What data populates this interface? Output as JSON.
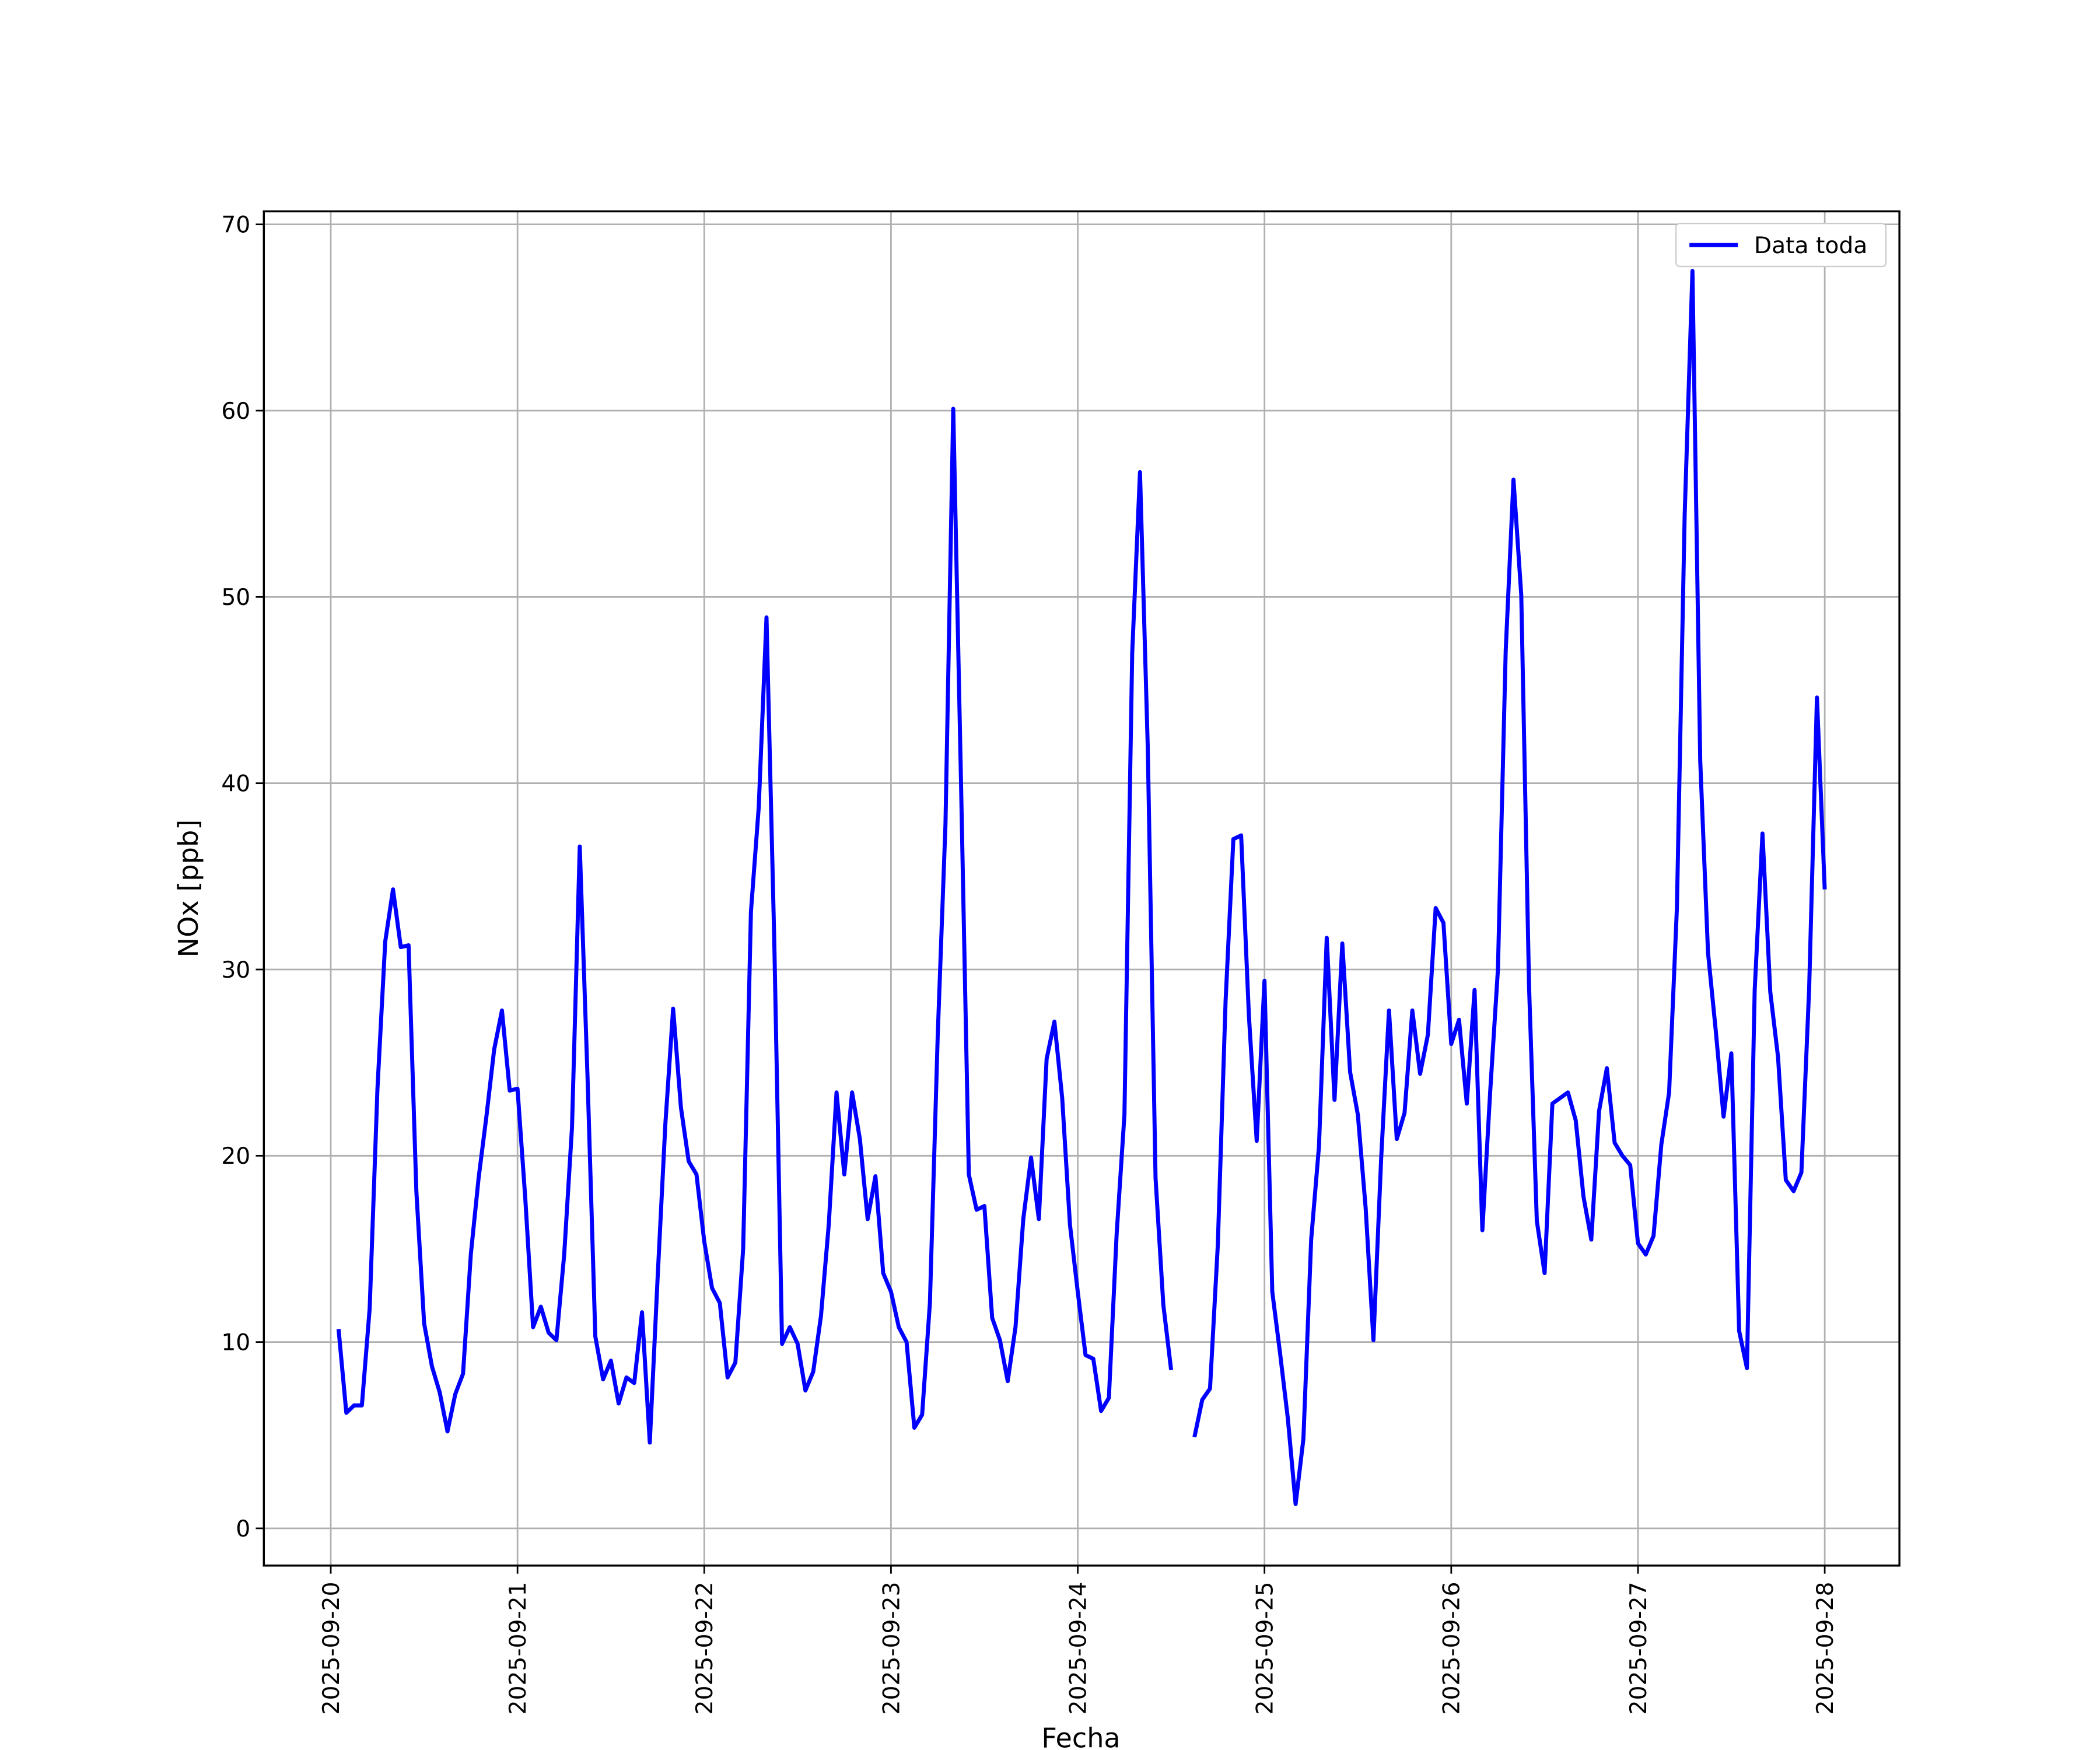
{
  "chart_data": {
    "type": "line",
    "xlabel": "Fecha",
    "ylabel": "NOx [ppb]",
    "x": [
      1,
      2,
      3,
      4,
      5,
      6,
      7,
      8,
      9,
      10,
      11,
      12,
      13,
      14,
      15,
      16,
      17,
      18,
      19,
      20,
      21,
      22,
      23,
      24,
      25,
      26,
      27,
      28,
      29,
      30,
      31,
      32,
      33,
      34,
      35,
      36,
      37,
      38,
      39,
      40,
      41,
      42,
      43,
      44,
      45,
      46,
      47,
      48,
      49,
      50,
      51,
      52,
      53,
      54,
      55,
      56,
      57,
      58,
      59,
      60,
      61,
      62,
      63,
      64,
      65,
      66,
      67,
      68,
      69,
      70,
      71,
      72,
      73,
      74,
      75,
      76,
      77,
      78,
      79,
      80,
      81,
      82,
      83,
      84,
      85,
      86,
      87,
      88,
      89,
      90,
      91,
      92,
      93,
      94,
      95,
      96,
      97,
      98,
      99,
      100,
      101,
      102,
      103,
      104,
      105,
      106,
      107,
      108,
      109,
      110,
      111,
      112,
      113,
      114,
      115,
      116,
      117,
      118,
      119,
      120,
      121,
      122,
      123,
      124,
      125,
      126,
      127,
      128,
      129,
      130,
      131,
      132,
      133,
      134,
      135,
      136,
      137,
      138,
      139,
      140,
      141,
      142,
      143,
      144,
      145,
      146,
      147,
      148,
      149,
      150,
      151,
      152,
      153,
      154,
      155,
      156,
      157,
      158,
      159,
      160,
      161,
      162,
      163,
      164,
      165,
      166,
      167,
      168,
      169,
      170,
      171,
      172,
      173,
      174,
      175,
      176,
      177,
      178,
      179,
      180,
      181,
      182,
      183,
      184,
      185,
      186,
      187,
      188,
      189,
      190,
      191,
      192
    ],
    "series": [
      {
        "name": "Data toda",
        "color": "#0000ff",
        "values": [
          10.7,
          6.2,
          6.6,
          6.6,
          11.8,
          23.6,
          31.5,
          34.3,
          31.2,
          31.3,
          18.1,
          11.0,
          8.7,
          7.3,
          5.2,
          7.2,
          8.3,
          14.7,
          18.8,
          22.1,
          25.7,
          27.8,
          23.5,
          23.6,
          17.7,
          10.8,
          11.9,
          10.5,
          10.1,
          14.7,
          21.5,
          36.6,
          24.2,
          10.3,
          8.0,
          9.0,
          6.7,
          8.1,
          7.8,
          11.6,
          4.6,
          13.4,
          21.7,
          27.9,
          22.6,
          19.7,
          19.0,
          15.4,
          12.9,
          12.1,
          8.1,
          8.9,
          15.0,
          33.1,
          38.7,
          48.9,
          31.5,
          9.9,
          10.8,
          9.9,
          7.4,
          8.4,
          11.4,
          16.3,
          23.4,
          19.0,
          23.4,
          20.9,
          16.6,
          18.9,
          13.7,
          12.7,
          10.8,
          10.0,
          5.4,
          6.1,
          12.1,
          26.4,
          37.8,
          60.1,
          40.0,
          19.0,
          17.1,
          17.3,
          11.3,
          10.1,
          7.9,
          10.8,
          16.6,
          19.9,
          16.6,
          25.2,
          27.2,
          23.1,
          16.3,
          12.7,
          9.3,
          9.1,
          6.3,
          7.0,
          15.8,
          22.2,
          47.0,
          56.7,
          41.9,
          18.8,
          12.0,
          8.5,
          null,
          null,
          4.9,
          6.9,
          7.5,
          15.2,
          28.3,
          37.0,
          37.2,
          27.5,
          20.8,
          29.4,
          12.7,
          9.4,
          5.9,
          1.3,
          4.8,
          15.5,
          20.5,
          31.7,
          23.0,
          31.4,
          24.5,
          22.2,
          17.2,
          10.1,
          19.9,
          27.8,
          20.9,
          22.3,
          27.8,
          24.4,
          26.5,
          33.3,
          32.5,
          26.0,
          27.3,
          22.8,
          28.9,
          16.0,
          23.4,
          30.0,
          47.1,
          56.3,
          50.1,
          29.1,
          16.5,
          13.7,
          22.8,
          23.1,
          23.4,
          21.9,
          17.8,
          15.5,
          22.4,
          24.7,
          20.7,
          20.0,
          19.5,
          15.3,
          14.7,
          15.7,
          20.6,
          23.4,
          33.3,
          54.4,
          67.5,
          41.2,
          30.9,
          26.7,
          22.1,
          25.5,
          10.6,
          8.6,
          28.9,
          37.3,
          28.8,
          25.3,
          18.7,
          18.1,
          19.1,
          29.0,
          44.6,
          34.3
        ]
      }
    ],
    "xlim": [
      -8.6,
      201.6
    ],
    "xticks": [
      {
        "value": 0,
        "label": "2025-09-20"
      },
      {
        "value": 24,
        "label": "2025-09-21"
      },
      {
        "value": 48,
        "label": "2025-09-22"
      },
      {
        "value": 72,
        "label": "2025-09-23"
      },
      {
        "value": 96,
        "label": "2025-09-24"
      },
      {
        "value": 120,
        "label": "2025-09-25"
      },
      {
        "value": 144,
        "label": "2025-09-26"
      },
      {
        "value": 168,
        "label": "2025-09-27"
      },
      {
        "value": 192,
        "label": "2025-09-28"
      }
    ],
    "ylim": [
      -2.0,
      70.7
    ],
    "yticks": [
      0,
      10,
      20,
      30,
      40,
      50,
      60,
      70
    ],
    "grid": true,
    "legend": "upper right"
  }
}
